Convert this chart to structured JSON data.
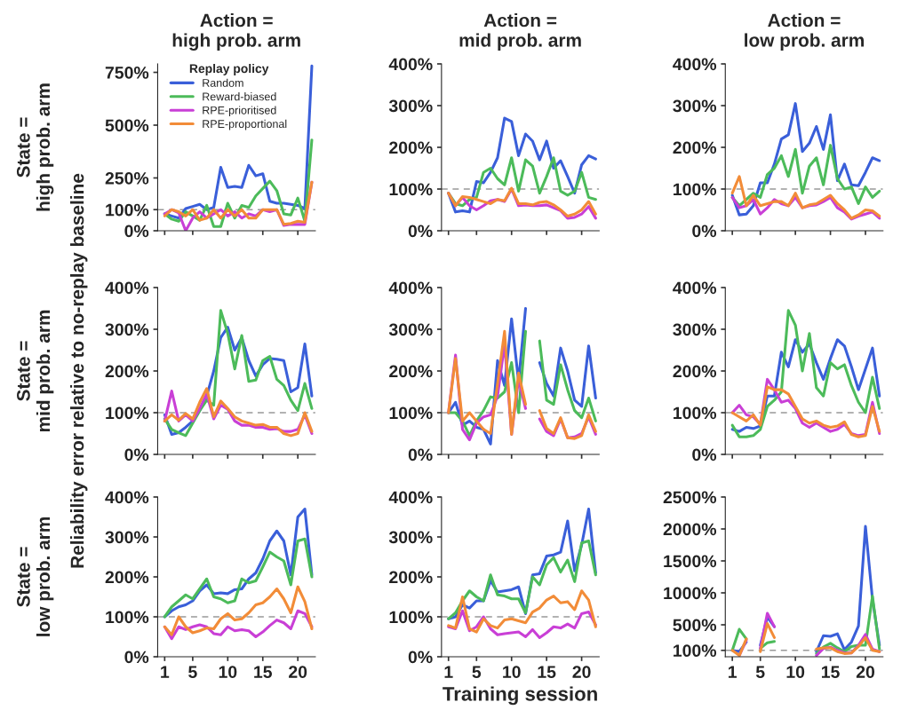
{
  "chart_data": [
    {
      "type": "line",
      "title": "Action =\nhigh prob. arm",
      "ylabel": "State =\nhigh prob. arm",
      "legend": "top left",
      "legend_title": "Replay policy",
      "tick_labels": "y",
      "x": [
        1,
        2,
        3,
        4,
        5,
        6,
        7,
        8,
        9,
        10,
        11,
        12,
        13,
        14,
        15,
        16,
        17,
        18,
        19,
        20,
        21,
        22
      ],
      "xlim": [
        0,
        22.5
      ],
      "xticks": [
        {
          "value": 1,
          "label": null
        },
        {
          "value": 5,
          "label": null
        },
        {
          "value": 10,
          "label": null
        },
        {
          "value": 15,
          "label": null
        },
        {
          "value": 20,
          "label": null
        }
      ],
      "ylim": [
        0,
        790
      ],
      "yticks": [
        {
          "value": 0,
          "label": "0%"
        },
        {
          "value": 100,
          "label": "100%"
        },
        {
          "value": 250,
          "label": "250%"
        },
        {
          "value": 500,
          "label": "500%"
        },
        {
          "value": 750,
          "label": "750%"
        }
      ],
      "ref_lines": [
        {
          "axis": "y",
          "value": 100,
          "color": "#999999",
          "line_style": "dashed"
        }
      ],
      "series": [
        {
          "name": "Random",
          "color": "#3a5fd9",
          "values": [
            80,
            70,
            60,
            105,
            115,
            125,
            100,
            110,
            300,
            205,
            210,
            205,
            310,
            260,
            270,
            140,
            130,
            130,
            125,
            120,
            105,
            780
          ]
        },
        {
          "name": "Reward-biased",
          "color": "#4cbb5a",
          "values": [
            80,
            55,
            45,
            90,
            70,
            50,
            120,
            20,
            20,
            130,
            60,
            120,
            110,
            165,
            200,
            235,
            190,
            80,
            75,
            155,
            45,
            430
          ]
        },
        {
          "name": "RPE-prioritised",
          "color": "#c93fd6",
          "values": [
            80,
            100,
            85,
            0,
            60,
            90,
            60,
            80,
            100,
            70,
            90,
            60,
            80,
            70,
            100,
            90,
            100,
            25,
            30,
            30,
            30,
            230
          ]
        },
        {
          "name": "RPE-proportional",
          "color": "#f28c38",
          "values": [
            70,
            100,
            90,
            70,
            100,
            50,
            60,
            100,
            60,
            100,
            70,
            100,
            60,
            60,
            100,
            100,
            100,
            30,
            35,
            45,
            40,
            230
          ]
        }
      ]
    },
    {
      "type": "line",
      "title": "Action =\nmid prob. arm",
      "tick_labels": "y",
      "x": [
        1,
        2,
        3,
        4,
        5,
        6,
        7,
        8,
        9,
        10,
        11,
        12,
        13,
        14,
        15,
        16,
        17,
        18,
        19,
        20,
        21,
        22
      ],
      "xlim": [
        0,
        22.5
      ],
      "xticks": [
        {
          "value": 1,
          "label": null
        },
        {
          "value": 5,
          "label": null
        },
        {
          "value": 10,
          "label": null
        },
        {
          "value": 15,
          "label": null
        },
        {
          "value": 20,
          "label": null
        }
      ],
      "ylim": [
        0,
        400
      ],
      "yticks": [
        {
          "value": 0,
          "label": "0%"
        },
        {
          "value": 100,
          "label": "100%"
        },
        {
          "value": 200,
          "label": "200%"
        },
        {
          "value": 300,
          "label": "300%"
        },
        {
          "value": 400,
          "label": "400%"
        }
      ],
      "ref_lines": [
        {
          "axis": "y",
          "value": 100,
          "color": "#999999",
          "line_style": "dashed"
        }
      ],
      "series": [
        {
          "color": "#3a5fd9",
          "values": [
            90,
            45,
            48,
            45,
            118,
            115,
            140,
            175,
            270,
            262,
            180,
            232,
            215,
            170,
            215,
            150,
            168,
            130,
            90,
            158,
            180,
            172
          ]
        },
        {
          "color": "#4cbb5a",
          "values": [
            90,
            65,
            60,
            75,
            80,
            140,
            150,
            125,
            110,
            175,
            95,
            170,
            155,
            90,
            130,
            175,
            95,
            85,
            95,
            140,
            80,
            75
          ]
        },
        {
          "color": "#c93fd6",
          "values": [
            90,
            60,
            80,
            60,
            50,
            60,
            72,
            75,
            70,
            100,
            60,
            62,
            60,
            60,
            62,
            55,
            48,
            30,
            32,
            40,
            58,
            30
          ]
        },
        {
          "color": "#f28c38",
          "values": [
            90,
            60,
            82,
            80,
            75,
            70,
            65,
            75,
            72,
            102,
            65,
            65,
            62,
            68,
            70,
            62,
            50,
            35,
            40,
            50,
            70,
            40
          ]
        }
      ]
    },
    {
      "type": "line",
      "title": "Action =\nlow prob. arm",
      "tick_labels": "y",
      "x": [
        1,
        2,
        3,
        4,
        5,
        6,
        7,
        8,
        9,
        10,
        11,
        12,
        13,
        14,
        15,
        16,
        17,
        18,
        19,
        20,
        21,
        22
      ],
      "xlim": [
        0,
        22.5
      ],
      "xticks": [
        {
          "value": 1,
          "label": null
        },
        {
          "value": 5,
          "label": null
        },
        {
          "value": 10,
          "label": null
        },
        {
          "value": 15,
          "label": null
        },
        {
          "value": 20,
          "label": null
        }
      ],
      "ylim": [
        0,
        400
      ],
      "yticks": [
        {
          "value": 0,
          "label": "0%"
        },
        {
          "value": 100,
          "label": "100%"
        },
        {
          "value": 200,
          "label": "200%"
        },
        {
          "value": 300,
          "label": "300%"
        },
        {
          "value": 400,
          "label": "400%"
        }
      ],
      "ref_lines": [
        {
          "axis": "y",
          "value": 100,
          "color": "#999999",
          "line_style": "dashed"
        }
      ],
      "series": [
        {
          "color": "#3a5fd9",
          "values": [
            85,
            38,
            40,
            60,
            115,
            115,
            160,
            220,
            230,
            305,
            190,
            210,
            250,
            195,
            278,
            120,
            160,
            110,
            108,
            140,
            175,
            168
          ]
        },
        {
          "color": "#4cbb5a",
          "values": [
            80,
            60,
            75,
            90,
            80,
            135,
            150,
            180,
            130,
            195,
            90,
            155,
            175,
            110,
            205,
            125,
            100,
            105,
            65,
            105,
            80,
            95
          ]
        },
        {
          "color": "#c93fd6",
          "values": [
            80,
            55,
            60,
            75,
            40,
            55,
            75,
            65,
            60,
            80,
            55,
            60,
            62,
            70,
            80,
            55,
            45,
            28,
            35,
            40,
            45,
            30
          ]
        },
        {
          "color": "#f28c38",
          "values": [
            90,
            130,
            60,
            85,
            60,
            65,
            70,
            70,
            60,
            90,
            55,
            62,
            65,
            75,
            85,
            65,
            50,
            30,
            38,
            50,
            48,
            35
          ]
        }
      ]
    },
    {
      "type": "line",
      "ylabel": "State =\nmid prob. arm",
      "annotations": [
        "Reliability error relative to no-replay baseline"
      ],
      "tick_labels": "y",
      "x": [
        1,
        2,
        3,
        4,
        5,
        6,
        7,
        8,
        9,
        10,
        11,
        12,
        13,
        14,
        15,
        16,
        17,
        18,
        19,
        20,
        21,
        22
      ],
      "xlim": [
        0,
        22.5
      ],
      "xticks": [
        {
          "value": 1,
          "label": null
        },
        {
          "value": 5,
          "label": null
        },
        {
          "value": 10,
          "label": null
        },
        {
          "value": 15,
          "label": null
        },
        {
          "value": 20,
          "label": null
        }
      ],
      "ylim": [
        0,
        400
      ],
      "yticks": [
        {
          "value": 0,
          "label": "0%"
        },
        {
          "value": 100,
          "label": "100%"
        },
        {
          "value": 200,
          "label": "200%"
        },
        {
          "value": 300,
          "label": "300%"
        },
        {
          "value": 400,
          "label": "400%"
        }
      ],
      "ref_lines": [
        {
          "axis": "y",
          "value": 100,
          "color": "#999999",
          "line_style": "dashed"
        }
      ],
      "series": [
        {
          "color": "#3a5fd9",
          "values": [
            95,
            48,
            52,
            65,
            80,
            105,
            140,
            200,
            280,
            305,
            250,
            280,
            225,
            188,
            215,
            230,
            228,
            225,
            150,
            160,
            265,
            140
          ]
        },
        {
          "color": "#4cbb5a",
          "values": [
            85,
            60,
            52,
            45,
            75,
            105,
            130,
            118,
            345,
            290,
            205,
            285,
            175,
            178,
            225,
            235,
            180,
            165,
            130,
            105,
            170,
            110
          ]
        },
        {
          "color": "#c93fd6",
          "values": [
            80,
            152,
            80,
            95,
            80,
            110,
            145,
            85,
            118,
            108,
            80,
            70,
            70,
            65,
            65,
            60,
            62,
            55,
            55,
            60,
            95,
            50
          ]
        },
        {
          "color": "#f28c38",
          "values": [
            80,
            95,
            82,
            98,
            85,
            125,
            158,
            90,
            128,
            110,
            90,
            80,
            75,
            70,
            72,
            65,
            65,
            50,
            45,
            50,
            100,
            55
          ]
        }
      ]
    },
    {
      "type": "line",
      "tick_labels": "y",
      "x": [
        1,
        2,
        3,
        4,
        5,
        6,
        7,
        8,
        9,
        10,
        11,
        12,
        13,
        14,
        15,
        16,
        17,
        18,
        19,
        20,
        21,
        22
      ],
      "xlim": [
        0,
        22.5
      ],
      "xticks": [
        {
          "value": 1,
          "label": null
        },
        {
          "value": 5,
          "label": null
        },
        {
          "value": 10,
          "label": null
        },
        {
          "value": 15,
          "label": null
        },
        {
          "value": 20,
          "label": null
        }
      ],
      "ylim": [
        0,
        400
      ],
      "yticks": [
        {
          "value": 0,
          "label": "0%"
        },
        {
          "value": 100,
          "label": "100%"
        },
        {
          "value": 200,
          "label": "200%"
        },
        {
          "value": 300,
          "label": "300%"
        },
        {
          "value": 400,
          "label": "400%"
        }
      ],
      "ref_lines": [
        {
          "axis": "y",
          "value": 100,
          "color": "#999999",
          "line_style": "dashed"
        }
      ],
      "series": [
        {
          "color": "#3a5fd9",
          "values": [
            100,
            125,
            70,
            80,
            65,
            60,
            25,
            225,
            165,
            325,
            175,
            350,
            null,
            220,
            170,
            140,
            255,
            200,
            130,
            115,
            260,
            135
          ]
        },
        {
          "color": "#4cbb5a",
          "values": [
            100,
            100,
            80,
            45,
            80,
            105,
            138,
            135,
            150,
            220,
            100,
            295,
            null,
            272,
            130,
            120,
            215,
            155,
            105,
            88,
            135,
            80
          ]
        },
        {
          "color": "#c93fd6",
          "values": [
            100,
            238,
            60,
            35,
            75,
            90,
            95,
            140,
            265,
            48,
            180,
            110,
            null,
            85,
            55,
            45,
            85,
            40,
            42,
            50,
            90,
            48
          ]
        },
        {
          "color": "#f28c38",
          "values": [
            100,
            230,
            80,
            100,
            80,
            60,
            50,
            170,
            295,
            48,
            195,
            120,
            null,
            105,
            62,
            50,
            88,
            40,
            38,
            45,
            95,
            55
          ]
        }
      ]
    },
    {
      "type": "line",
      "tick_labels": "y",
      "x": [
        1,
        2,
        3,
        4,
        5,
        6,
        7,
        8,
        9,
        10,
        11,
        12,
        13,
        14,
        15,
        16,
        17,
        18,
        19,
        20,
        21,
        22
      ],
      "xlim": [
        0,
        22.5
      ],
      "xticks": [
        {
          "value": 1,
          "label": null
        },
        {
          "value": 5,
          "label": null
        },
        {
          "value": 10,
          "label": null
        },
        {
          "value": 15,
          "label": null
        },
        {
          "value": 20,
          "label": null
        }
      ],
      "ylim": [
        0,
        400
      ],
      "yticks": [
        {
          "value": 0,
          "label": "0%"
        },
        {
          "value": 100,
          "label": "100%"
        },
        {
          "value": 200,
          "label": "200%"
        },
        {
          "value": 300,
          "label": "300%"
        },
        {
          "value": 400,
          "label": "400%"
        }
      ],
      "ref_lines": [
        {
          "axis": "y",
          "value": 100,
          "color": "#999999",
          "line_style": "dashed"
        }
      ],
      "series": [
        {
          "color": "#3a5fd9",
          "values": [
            60,
            55,
            65,
            62,
            68,
            140,
            140,
            245,
            210,
            275,
            245,
            265,
            220,
            180,
            230,
            275,
            260,
            210,
            155,
            205,
            255,
            140
          ]
        },
        {
          "color": "#4cbb5a",
          "values": [
            70,
            42,
            42,
            45,
            60,
            115,
            130,
            150,
            345,
            310,
            200,
            290,
            160,
            140,
            220,
            205,
            215,
            165,
            125,
            100,
            185,
            110
          ]
        },
        {
          "color": "#c93fd6",
          "values": [
            100,
            118,
            95,
            90,
            72,
            180,
            155,
            125,
            130,
            110,
            75,
            65,
            75,
            65,
            55,
            60,
            72,
            50,
            45,
            48,
            125,
            50
          ]
        },
        {
          "color": "#f28c38",
          "values": [
            100,
            90,
            80,
            95,
            70,
            162,
            155,
            155,
            145,
            115,
            85,
            75,
            80,
            70,
            65,
            68,
            78,
            48,
            42,
            45,
            115,
            55
          ]
        }
      ]
    },
    {
      "type": "line",
      "ylabel": "State =\nlow prob. arm",
      "x": [
        1,
        2,
        3,
        4,
        5,
        6,
        7,
        8,
        9,
        10,
        11,
        12,
        13,
        14,
        15,
        16,
        17,
        18,
        19,
        20,
        21,
        22
      ],
      "xlim": [
        0,
        22.5
      ],
      "xticks": [
        1,
        5,
        10,
        15,
        20
      ],
      "ylim": [
        0,
        400
      ],
      "yticks": [
        {
          "value": 0,
          "label": "0%"
        },
        {
          "value": 100,
          "label": "100%"
        },
        {
          "value": 200,
          "label": "200%"
        },
        {
          "value": 300,
          "label": "300%"
        },
        {
          "value": 400,
          "label": "400%"
        }
      ],
      "ref_lines": [
        {
          "axis": "y",
          "value": 100,
          "color": "#999999",
          "line_style": "dashed"
        }
      ],
      "series": [
        {
          "color": "#3a5fd9",
          "values": [
            100,
            115,
            125,
            130,
            140,
            165,
            180,
            158,
            160,
            158,
            168,
            170,
            195,
            210,
            245,
            290,
            315,
            290,
            205,
            350,
            370,
            205
          ]
        },
        {
          "color": "#4cbb5a",
          "values": [
            100,
            125,
            140,
            155,
            145,
            170,
            195,
            150,
            145,
            135,
            140,
            195,
            185,
            190,
            225,
            262,
            250,
            240,
            180,
            290,
            295,
            200
          ]
        },
        {
          "color": "#c93fd6",
          "values": [
            75,
            45,
            75,
            68,
            75,
            80,
            75,
            58,
            55,
            75,
            65,
            68,
            65,
            50,
            62,
            78,
            92,
            85,
            70,
            115,
            108,
            75
          ]
        },
        {
          "color": "#f28c38",
          "values": [
            75,
            55,
            100,
            75,
            60,
            65,
            72,
            70,
            95,
            108,
            92,
            95,
            110,
            130,
            135,
            150,
            170,
            145,
            110,
            175,
            138,
            70
          ]
        }
      ]
    },
    {
      "type": "line",
      "xlabel": "Training session",
      "x": [
        1,
        2,
        3,
        4,
        5,
        6,
        7,
        8,
        9,
        10,
        11,
        12,
        13,
        14,
        15,
        16,
        17,
        18,
        19,
        20,
        21,
        22
      ],
      "xlim": [
        0,
        22.5
      ],
      "xticks": [
        1,
        5,
        10,
        15,
        20
      ],
      "ylim": [
        0,
        400
      ],
      "yticks": [
        {
          "value": 0,
          "label": "0%"
        },
        {
          "value": 100,
          "label": "100%"
        },
        {
          "value": 200,
          "label": "200%"
        },
        {
          "value": 300,
          "label": "300%"
        },
        {
          "value": 400,
          "label": "400%"
        }
      ],
      "ref_lines": [
        {
          "axis": "y",
          "value": 100,
          "color": "#999999",
          "line_style": "dashed"
        }
      ],
      "series": [
        {
          "color": "#3a5fd9",
          "values": [
            95,
            100,
            130,
            122,
            140,
            140,
            190,
            162,
            165,
            168,
            175,
            108,
            205,
            208,
            252,
            255,
            262,
            340,
            215,
            280,
            370,
            210
          ]
        },
        {
          "color": "#4cbb5a",
          "values": [
            95,
            110,
            140,
            165,
            150,
            140,
            205,
            155,
            152,
            145,
            145,
            110,
            200,
            180,
            230,
            248,
            212,
            242,
            188,
            285,
            290,
            205
          ]
        },
        {
          "color": "#c93fd6",
          "values": [
            75,
            70,
            115,
            65,
            75,
            100,
            70,
            55,
            58,
            60,
            62,
            50,
            68,
            48,
            60,
            75,
            72,
            82,
            72,
            108,
            112,
            80
          ]
        },
        {
          "color": "#f28c38",
          "values": [
            78,
            72,
            150,
            70,
            62,
            95,
            78,
            72,
            92,
            95,
            90,
            85,
            112,
            122,
            142,
            152,
            135,
            138,
            118,
            165,
            142,
            75
          ]
        }
      ]
    },
    {
      "type": "line",
      "x": [
        1,
        2,
        3,
        4,
        5,
        6,
        7,
        8,
        9,
        10,
        11,
        12,
        13,
        14,
        15,
        16,
        17,
        18,
        19,
        20,
        21,
        22
      ],
      "xlim": [
        0,
        22.5
      ],
      "xticks": [
        1,
        5,
        10,
        15,
        20
      ],
      "ylim": [
        0,
        2500
      ],
      "yticks": [
        {
          "value": 100,
          "label": "100%"
        },
        {
          "value": 500,
          "label": "500%"
        },
        {
          "value": 1000,
          "label": "1000%"
        },
        {
          "value": 1500,
          "label": "1500%"
        },
        {
          "value": 2000,
          "label": "2000%"
        },
        {
          "value": 2500,
          "label": "2500%"
        }
      ],
      "ref_lines": [
        {
          "axis": "y",
          "value": 100,
          "color": "#999999",
          "line_style": "dashed"
        }
      ],
      "series": [
        {
          "color": "#3a5fd9",
          "values": [
            100,
            80,
            230,
            null,
            180,
            620,
            470,
            null,
            null,
            null,
            null,
            null,
            80,
            330,
            320,
            360,
            110,
            230,
            480,
            2040,
            900,
            180
          ]
        },
        {
          "color": "#4cbb5a",
          "values": [
            100,
            430,
            280,
            null,
            130,
            220,
            240,
            null,
            null,
            null,
            null,
            null,
            50,
            150,
            210,
            140,
            80,
            160,
            180,
            180,
            950,
            120
          ]
        },
        {
          "color": "#c93fd6",
          "values": [
            null,
            20,
            260,
            null,
            130,
            680,
            470,
            null,
            null,
            null,
            null,
            null,
            20,
            130,
            150,
            100,
            60,
            60,
            180,
            350,
            120,
            80
          ]
        },
        {
          "color": "#f28c38",
          "values": [
            100,
            20,
            280,
            null,
            80,
            520,
            300,
            null,
            null,
            null,
            null,
            null,
            120,
            140,
            140,
            80,
            50,
            60,
            160,
            300,
            100,
            80
          ]
        }
      ]
    }
  ]
}
